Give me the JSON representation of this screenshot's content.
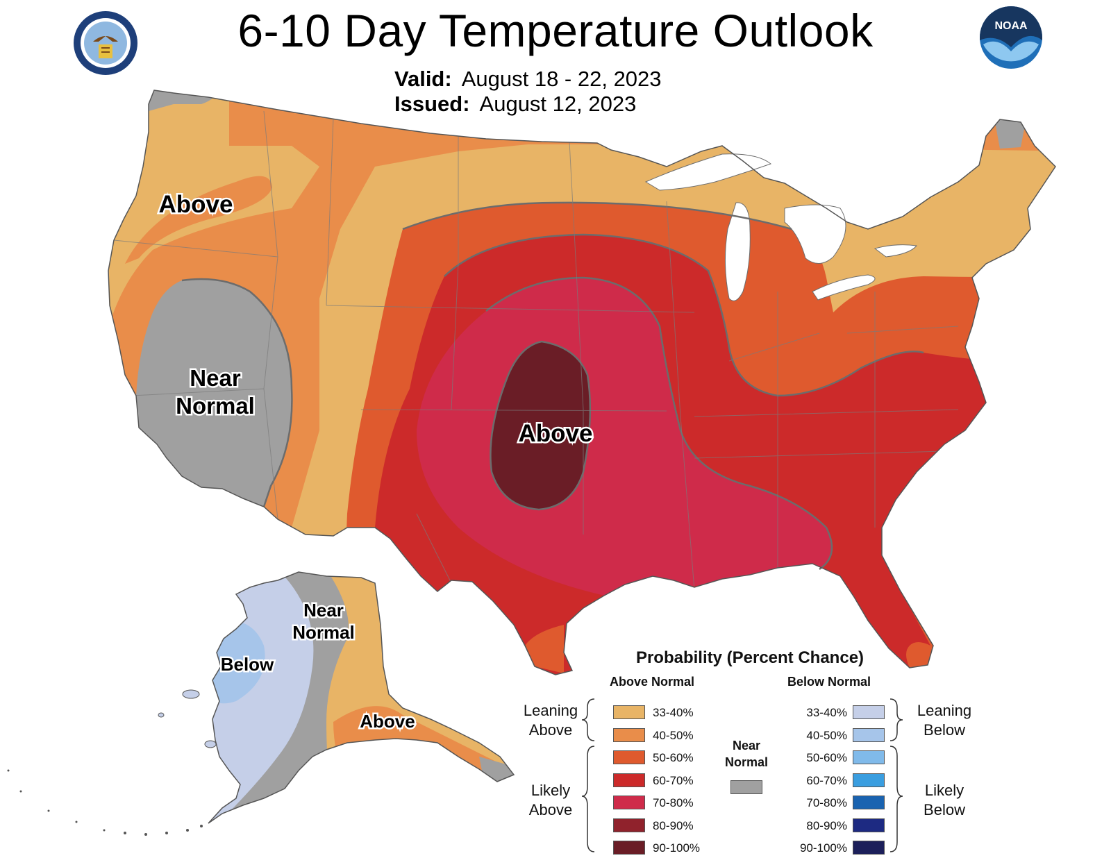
{
  "title": "6-10 Day Temperature Outlook",
  "valid_label": "Valid:",
  "valid_value": "August 18 - 22, 2023",
  "issued_label": "Issued:",
  "issued_value": "August 12, 2023",
  "map_labels": {
    "west_above": "Above",
    "west_near_1": "Near",
    "west_near_2": "Normal",
    "central_above": "Above",
    "ak_near_1": "Near",
    "ak_near_2": "Normal",
    "ak_below": "Below",
    "ak_above": "Above"
  },
  "logos": {
    "commerce_seal": "department-of-commerce-seal",
    "noaa": "NOAA"
  },
  "legend": {
    "title": "Probability (Percent Chance)",
    "above_header": "Above Normal",
    "below_header": "Below Normal",
    "near_normal_1": "Near",
    "near_normal_2": "Normal",
    "near_normal_color": "#a0a0a0",
    "leaning_above_1": "Leaning",
    "leaning_above_2": "Above",
    "likely_above_1": "Likely",
    "likely_above_2": "Above",
    "leaning_below_1": "Leaning",
    "leaning_below_2": "Below",
    "likely_below_1": "Likely",
    "likely_below_2": "Below",
    "above": [
      {
        "label": "33-40%",
        "color": "#e8b466"
      },
      {
        "label": "40-50%",
        "color": "#e98d4a"
      },
      {
        "label": "50-60%",
        "color": "#df5a2e"
      },
      {
        "label": "60-70%",
        "color": "#cc2a2a"
      },
      {
        "label": "70-80%",
        "color": "#cf2b4a"
      },
      {
        "label": "80-90%",
        "color": "#90222c"
      },
      {
        "label": "90-100%",
        "color": "#6a1d26"
      }
    ],
    "below": [
      {
        "label": "33-40%",
        "color": "#c5cfe8"
      },
      {
        "label": "40-50%",
        "color": "#a6c5ea"
      },
      {
        "label": "50-60%",
        "color": "#80baea"
      },
      {
        "label": "60-70%",
        "color": "#3a9ee0"
      },
      {
        "label": "70-80%",
        "color": "#1a63b0"
      },
      {
        "label": "80-90%",
        "color": "#1d2a82"
      },
      {
        "label": "90-100%",
        "color": "#1c1f5a"
      }
    ]
  }
}
